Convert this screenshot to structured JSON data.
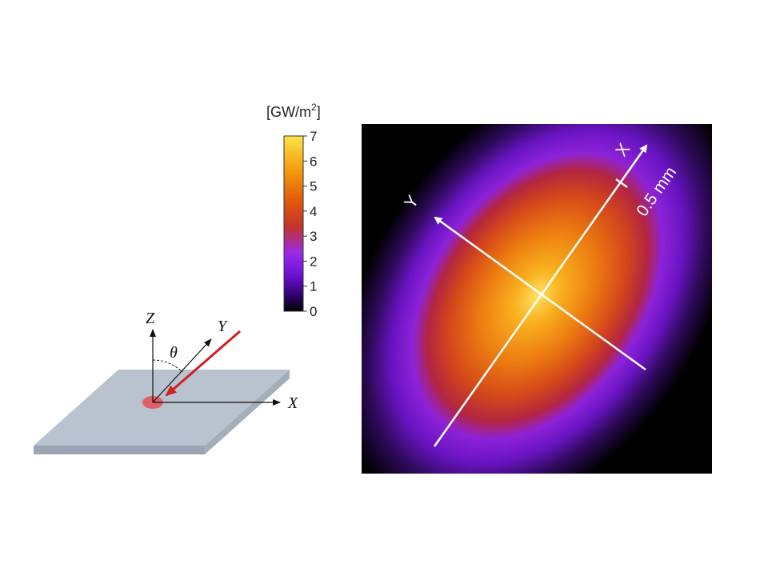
{
  "colorbar": {
    "unit_prefix": "[GW/m",
    "unit_sup": "2",
    "unit_suffix": "]",
    "ticks": [
      "0",
      "1",
      "2",
      "3",
      "4",
      "5",
      "6",
      "7"
    ],
    "range": [
      0,
      7
    ],
    "colormap": [
      "#000000",
      "#2a0060",
      "#6a10d0",
      "#9a2be8",
      "#c1342e",
      "#e0560c",
      "#f39a0a",
      "#fde34a"
    ]
  },
  "schematic": {
    "z_label": "Z",
    "y_label": "Y",
    "x_label": "X",
    "theta_label": "θ",
    "plate_color": "#b9c3cf",
    "spot_color": "#e0606a",
    "beam_color": "#d21e1e"
  },
  "beam_map": {
    "x_axis_label": "X",
    "y_axis_label": "Y",
    "scale_label": "0.5 mm",
    "background": "#000000",
    "axis_color": "#ffffff"
  }
}
